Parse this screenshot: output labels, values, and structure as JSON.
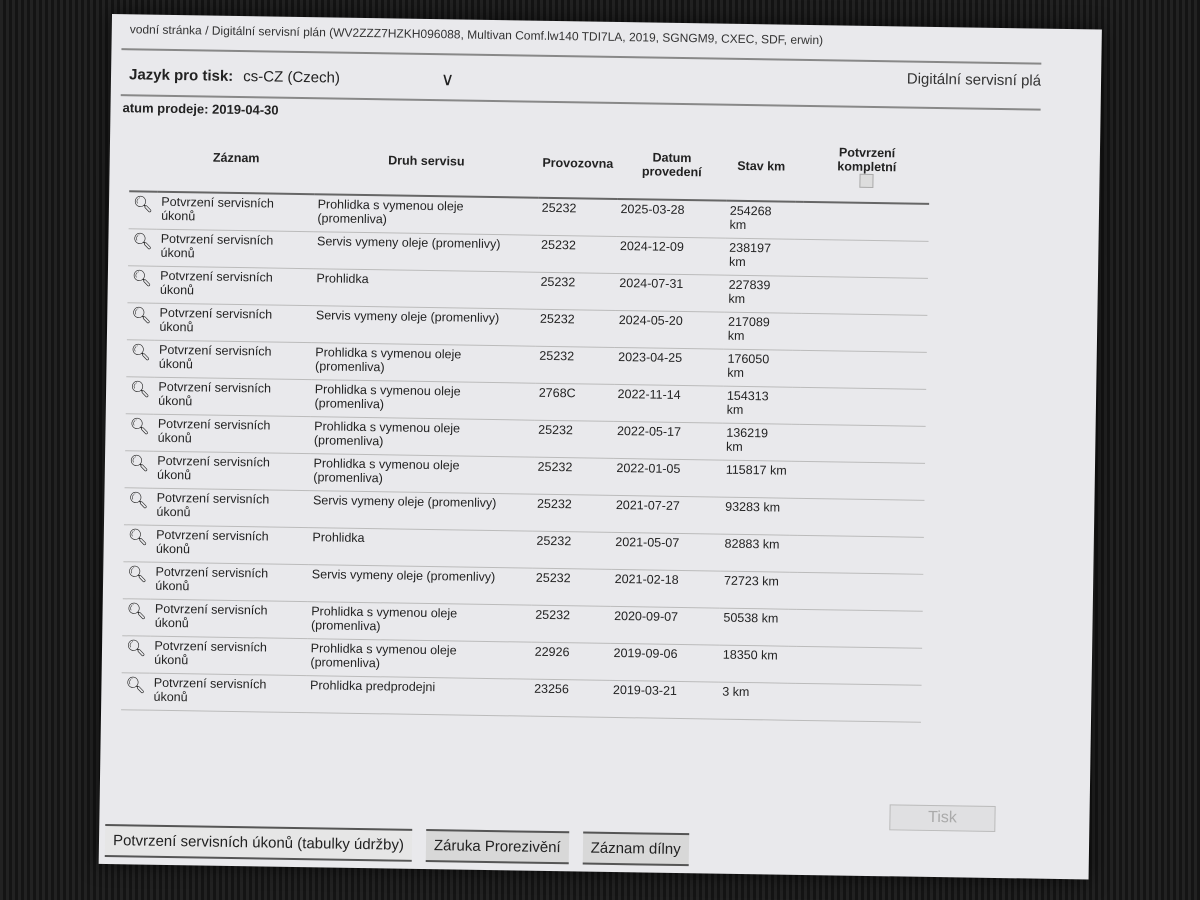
{
  "header": {
    "breadcrumb": "vodní stránka / Digitální servisní plán (WV2ZZZ7HZKH096088, Multivan Comf.lw140 TDI7LA, 2019, SGNGM9, CXEC, SDF, erwin)",
    "language_label": "Jazyk pro tisk:",
    "language_value": "cs-CZ (Czech)",
    "doc_title": "Digitální servisní plá",
    "sale_date": "atum prodeje: 2019-04-30"
  },
  "table": {
    "columns": [
      "",
      "Záznam",
      "Druh servisu",
      "Provozovna",
      "Datum provedení",
      "Stav km",
      "",
      "Potvrzení kompletní"
    ],
    "rows": [
      [
        "Potvrzení servisních úkonů",
        "Prohlidka s vymenou oleje (promenliva)",
        "25232",
        "2025-03-28",
        "254268 km"
      ],
      [
        "Potvrzení servisních úkonů",
        "Servis vymeny oleje (promenlivy)",
        "25232",
        "2024-12-09",
        "238197 km"
      ],
      [
        "Potvrzení servisních úkonů",
        "Prohlidka",
        "25232",
        "2024-07-31",
        "227839 km"
      ],
      [
        "Potvrzení servisních úkonů",
        "Servis vymeny oleje (promenlivy)",
        "25232",
        "2024-05-20",
        "217089 km"
      ],
      [
        "Potvrzení servisních úkonů",
        "Prohlidka s vymenou oleje (promenliva)",
        "25232",
        "2023-04-25",
        "176050 km"
      ],
      [
        "Potvrzení servisních úkonů",
        "Prohlidka s vymenou oleje (promenliva)",
        "2768C",
        "2022-11-14",
        "154313 km"
      ],
      [
        "Potvrzení servisních úkonů",
        "Prohlidka s vymenou oleje (promenliva)",
        "25232",
        "2022-05-17",
        "136219 km"
      ],
      [
        "Potvrzení servisních úkonů",
        "Prohlidka s vymenou oleje (promenliva)",
        "25232",
        "2022-01-05",
        "115817 km"
      ],
      [
        "Potvrzení servisních úkonů",
        "Servis vymeny oleje (promenlivy)",
        "25232",
        "2021-07-27",
        "93283 km"
      ],
      [
        "Potvrzení servisních úkonů",
        "Prohlidka",
        "25232",
        "2021-05-07",
        "82883 km"
      ],
      [
        "Potvrzení servisních úkonů",
        "Servis vymeny oleje (promenlivy)",
        "25232",
        "2021-02-18",
        "72723 km"
      ],
      [
        "Potvrzení servisních úkonů",
        "Prohlidka s vymenou oleje (promenliva)",
        "25232",
        "2020-09-07",
        "50538 km"
      ],
      [
        "Potvrzení servisních úkonů",
        "Prohlidka s vymenou oleje (promenliva)",
        "22926",
        "2019-09-06",
        "18350 km"
      ],
      [
        "Potvrzení servisních úkonů",
        "Prohlidka predprodejni",
        "23256",
        "2019-03-21",
        "3 km"
      ]
    ]
  },
  "print_button": "Tisk",
  "tabs": [
    "Potvrzení servisních úkonů (tabulky údržby)",
    "Záruka Prorezivění",
    "Záznam dílny"
  ]
}
